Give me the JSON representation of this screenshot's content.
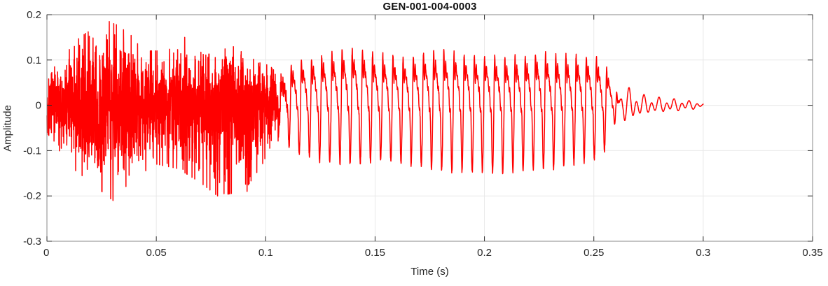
{
  "colors": {
    "background": "#ffffff",
    "line": "#ff0000",
    "grid": "#e8e8e8",
    "box": "#8a8a8a",
    "tick": "#2e2e2e",
    "tick_label": "#262626",
    "title": "#111111"
  },
  "chart_data": {
    "type": "line",
    "title": "GEN-001-004-0003",
    "xlabel": "Time (s)",
    "ylabel": "Amplitude",
    "xlim": [
      0,
      0.35
    ],
    "ylim": [
      -0.3,
      0.2
    ],
    "grid": true,
    "legend": false,
    "line_color": "#ff0000",
    "xticks": {
      "values": [
        0,
        0.05,
        0.1,
        0.15,
        0.2,
        0.25,
        0.3,
        0.35
      ],
      "labels": [
        "0",
        "0.05",
        "0.1",
        "0.15",
        "0.2",
        "0.25",
        "0.3",
        "0.35"
      ]
    },
    "yticks": {
      "values": [
        -0.3,
        -0.2,
        -0.1,
        0,
        0.1,
        0.2
      ],
      "labels": [
        "-0.3",
        "-0.2",
        "-0.1",
        "0",
        "0.1",
        "0.2"
      ]
    },
    "signal": {
      "description": "speech-like audio waveform: dense noisy burst 0-0.105 s, periodic voiced segment 0.105-0.26 s (f0 ~215 Hz), decaying ripple tail ending at 0.30 s",
      "sample_rate": 16000,
      "duration": 0.3,
      "seed": 13,
      "envelopes": {
        "noise_pos": [
          [
            0,
            0.05
          ],
          [
            0.004,
            0.09
          ],
          [
            0.01,
            0.13
          ],
          [
            0.018,
            0.16
          ],
          [
            0.028,
            0.185
          ],
          [
            0.036,
            0.17
          ],
          [
            0.044,
            0.12
          ],
          [
            0.055,
            0.12
          ],
          [
            0.063,
            0.15
          ],
          [
            0.072,
            0.11
          ],
          [
            0.085,
            0.13
          ],
          [
            0.095,
            0.1
          ],
          [
            0.113,
            0.09
          ]
        ],
        "noise_neg": [
          [
            0,
            0.06
          ],
          [
            0.004,
            0.09
          ],
          [
            0.012,
            0.14
          ],
          [
            0.02,
            0.17
          ],
          [
            0.03,
            0.21
          ],
          [
            0.04,
            0.16
          ],
          [
            0.05,
            0.13
          ],
          [
            0.06,
            0.14
          ],
          [
            0.07,
            0.17
          ],
          [
            0.078,
            0.2
          ],
          [
            0.09,
            0.19
          ],
          [
            0.1,
            0.12
          ],
          [
            0.113,
            0.1
          ]
        ],
        "voiced_pos": [
          [
            0.098,
            0.06
          ],
          [
            0.112,
            0.09
          ],
          [
            0.125,
            0.11
          ],
          [
            0.14,
            0.125
          ],
          [
            0.15,
            0.115
          ],
          [
            0.165,
            0.105
          ],
          [
            0.18,
            0.12
          ],
          [
            0.195,
            0.11
          ],
          [
            0.21,
            0.105
          ],
          [
            0.225,
            0.115
          ],
          [
            0.24,
            0.11
          ],
          [
            0.252,
            0.105
          ],
          [
            0.266,
            0.09
          ]
        ],
        "voiced_neg": [
          [
            0.098,
            0.07
          ],
          [
            0.112,
            0.1
          ],
          [
            0.125,
            0.125
          ],
          [
            0.14,
            0.13
          ],
          [
            0.155,
            0.12
          ],
          [
            0.17,
            0.135
          ],
          [
            0.185,
            0.145
          ],
          [
            0.2,
            0.15
          ],
          [
            0.215,
            0.145
          ],
          [
            0.23,
            0.14
          ],
          [
            0.245,
            0.125
          ],
          [
            0.252,
            0.115
          ],
          [
            0.266,
            0.1
          ]
        ],
        "tail": [
          [
            0.256,
            0.1
          ],
          [
            0.262,
            0.06
          ],
          [
            0.266,
            0.035
          ],
          [
            0.27,
            0.022
          ],
          [
            0.276,
            0.016
          ],
          [
            0.284,
            0.013
          ],
          [
            0.292,
            0.01
          ],
          [
            0.298,
            0.006
          ],
          [
            0.3,
            0.003
          ]
        ]
      },
      "noise": {
        "core1": 0.55,
        "core2": 0.35,
        "spike_gain": 1.4,
        "spike_pow": 9
      },
      "voiced": {
        "f0": 215,
        "harmonics": [
          [
            1,
            0.85,
            0
          ],
          [
            2,
            0.5,
            1.0
          ],
          [
            3,
            0.33,
            2.0
          ],
          [
            4,
            0.18,
            2.8
          ],
          [
            6,
            0.09,
            1.3
          ]
        ],
        "jitter": 0.05
      },
      "tail": {
        "components": [
          [
            290,
            0.8,
            0.6
          ],
          [
            150,
            0.45,
            2.0
          ]
        ]
      },
      "fades": {
        "noise_out": [
          0.098,
          0.113
        ],
        "voiced_in": [
          0.098,
          0.113
        ],
        "voiced_out": [
          0.252,
          0.266
        ],
        "tail_in": [
          0.258,
          0.268
        ]
      },
      "extreme_points": [
        {
          "t": 0.0285,
          "v": 0.185
        },
        {
          "t": 0.0302,
          "v": -0.21
        },
        {
          "t": 0.063,
          "v": 0.15
        },
        {
          "t": 0.078,
          "v": -0.2
        },
        {
          "t": 0.0915,
          "v": -0.19
        }
      ]
    }
  }
}
